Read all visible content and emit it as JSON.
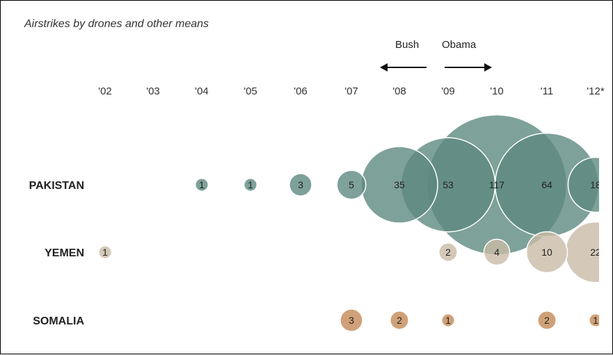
{
  "chart_data": {
    "type": "bubble",
    "title": "Airstrikes by drones and other means",
    "categories": [
      "'02",
      "'03",
      "'04",
      "'05",
      "'06",
      "'07",
      "'08",
      "'09",
      "'10",
      "'11",
      "'12*"
    ],
    "series": [
      {
        "name": "PAKISTAN",
        "color": "#5e8a80",
        "values": [
          null,
          null,
          1,
          1,
          3,
          5,
          35,
          53,
          117,
          64,
          18
        ]
      },
      {
        "name": "YEMEN",
        "color": "#c9bba6",
        "values": [
          1,
          null,
          null,
          null,
          null,
          null,
          null,
          2,
          4,
          10,
          22
        ]
      },
      {
        "name": "SOMALIA",
        "color": "#c48a56",
        "values": [
          null,
          null,
          null,
          null,
          null,
          3,
          2,
          1,
          null,
          2,
          1
        ]
      }
    ],
    "annotations": [
      {
        "label": "Bush",
        "direction": "left",
        "between": [
          "'07",
          "'08"
        ]
      },
      {
        "label": "Obama",
        "direction": "right",
        "between": [
          "'09",
          "'10"
        ]
      }
    ]
  }
}
